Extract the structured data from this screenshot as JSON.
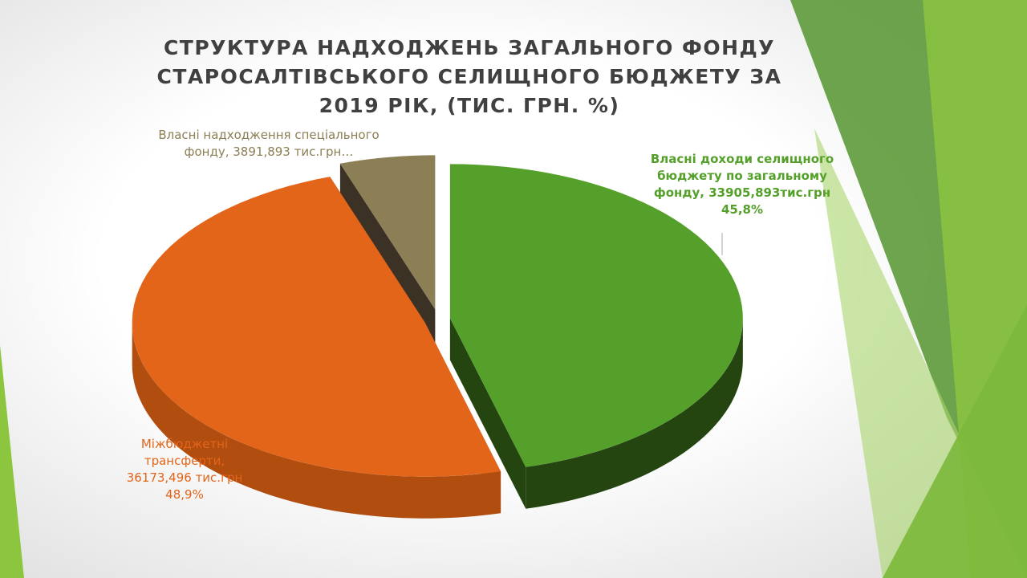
{
  "chart_data": {
    "type": "pie",
    "title": "СТРУКТУРА НАДХОДЖЕНЬ ЗАГАЛЬНОГО ФОНДУ СТАРОСАЛТІВСЬКОГО СЕЛИЩНОГО БЮДЖЕТУ ЗА 2019 РІК, (ТИС. ГРН. %)",
    "values": [
      33905.893,
      36173.496,
      3891.893
    ],
    "value_labels": [
      "Власні доходи селищного бюджету по загальному фонду, 33905,893тис.грн 45,8%",
      "Міжбюджетні трансферти, 36173,496 тис.грн 48,9%",
      "Власні надходження спеціального фонду, 3891,893 тис.грн…"
    ],
    "colors": [
      "#55a02a",
      "#e2651a",
      "#8c7e55"
    ],
    "side_colors": [
      "#24450f",
      "#b24d10",
      "#3b3225"
    ]
  }
}
